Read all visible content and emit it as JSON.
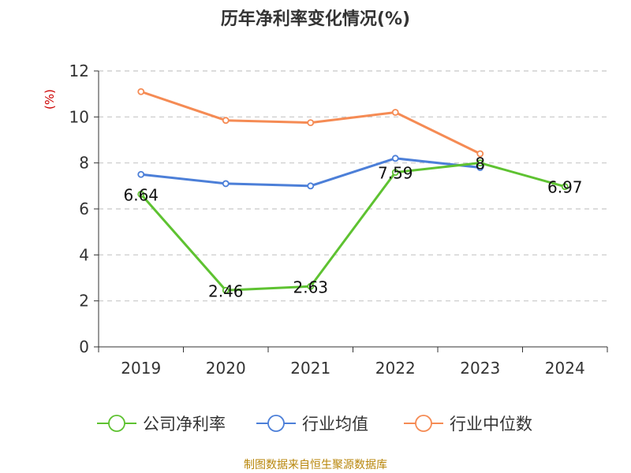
{
  "title": "历年净利率变化情况(%)",
  "source": "制图数据来自恒生聚源数据库",
  "chart_data": {
    "type": "line",
    "title": "历年净利率变化情况(%)",
    "ylabel": "(%)",
    "xlabel": "",
    "categories": [
      "2019",
      "2020",
      "2021",
      "2022",
      "2023",
      "2024"
    ],
    "ylim": [
      0,
      12
    ],
    "yticks": [
      0,
      2,
      4,
      6,
      8,
      10,
      12
    ],
    "grid": true,
    "legend_position": "bottom",
    "series": [
      {
        "name": "公司净利率",
        "color": "#5ec231",
        "values": [
          6.64,
          2.46,
          2.63,
          7.59,
          8,
          6.97
        ],
        "labels": [
          "6.64",
          "2.46",
          "2.63",
          "7.59",
          "8",
          "6.97"
        ]
      },
      {
        "name": "行业均值",
        "color": "#4c7fd8",
        "values": [
          7.5,
          7.1,
          7.0,
          8.2,
          7.8,
          null
        ]
      },
      {
        "name": "行业中位数",
        "color": "#f58b54",
        "values": [
          11.1,
          9.85,
          9.75,
          10.2,
          8.4,
          null
        ]
      }
    ]
  }
}
